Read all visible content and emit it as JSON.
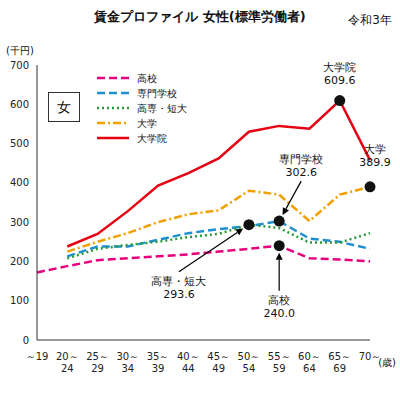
{
  "chart_data": {
    "type": "line",
    "title": "賃金プロファイル 女性(標準労働者)",
    "subtitle": "令和3年",
    "y_label": "(千円)",
    "x_label": "(歳)",
    "legend_label": "女",
    "categories": [
      "～19",
      "20～24",
      "25～29",
      "30～34",
      "35～39",
      "40～44",
      "45～49",
      "50～54",
      "55～59",
      "60～64",
      "65～69",
      "70～"
    ],
    "series": [
      {
        "name": "高校",
        "color": "#e6007e",
        "line_style": "dashed",
        "values": [
          172,
          188,
          203,
          208,
          213,
          218,
          225,
          232,
          240.0,
          208,
          205,
          200
        ]
      },
      {
        "name": "専門学校",
        "color": "#1e8fd0",
        "line_style": "dashed",
        "values": [
          null,
          213,
          238,
          238,
          255,
          272,
          282,
          290,
          302.6,
          258,
          250,
          232
        ]
      },
      {
        "name": "高専・短大",
        "color": "#2a9a3a",
        "line_style": "dotted",
        "values": [
          null,
          208,
          232,
          242,
          250,
          262,
          270,
          293.6,
          285,
          248,
          248,
          272
        ]
      },
      {
        "name": "大学",
        "color": "#f0a000",
        "line_style": "dashdot",
        "values": [
          null,
          225,
          250,
          272,
          300,
          320,
          330,
          380,
          370,
          303,
          370,
          389.9
        ]
      },
      {
        "name": "大学院",
        "color": "#e60012",
        "line_style": "solid",
        "values": [
          null,
          238,
          270,
          328,
          393,
          425,
          462,
          530,
          545,
          538,
          609.6,
          458
        ]
      }
    ],
    "annotations": [
      {
        "label": "大学院",
        "category": "65～69",
        "value": 609.6,
        "value_label": "609.6"
      },
      {
        "label": "専門学校",
        "category": "55～59",
        "value": 302.6,
        "value_label": "302.6"
      },
      {
        "label": "大学",
        "category": "70～",
        "value": 389.9,
        "value_label": "389.9"
      },
      {
        "label": "高専・短大",
        "category": "50～54",
        "value": 293.6,
        "value_label": "293.6"
      },
      {
        "label": "高校",
        "category": "55～59",
        "value": 240.0,
        "value_label": "240.0"
      }
    ],
    "ylim": [
      0,
      700
    ],
    "yticks": [
      0,
      100,
      200,
      300,
      400,
      500,
      600,
      700
    ],
    "grid": false
  }
}
